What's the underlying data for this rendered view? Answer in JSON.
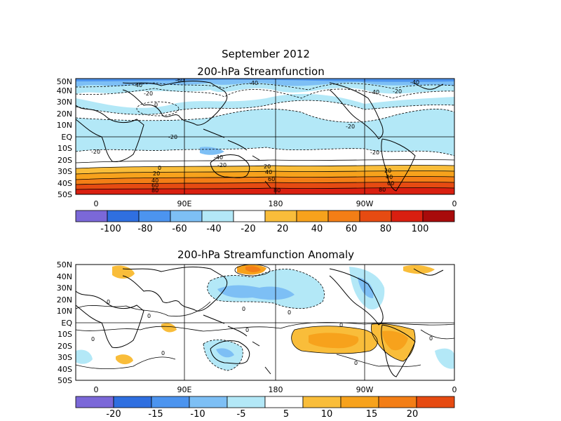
{
  "figure": {
    "title": "September 2012",
    "panel1_title": "200-hPa Streamfunction",
    "panel2_title": "200-hPa Streamfunction Anomaly"
  },
  "lat_labels": [
    "50N",
    "40N",
    "30N",
    "20N",
    "10N",
    "EQ",
    "10S",
    "20S",
    "30S",
    "40S",
    "50S"
  ],
  "lon_labels": [
    "0",
    "90E",
    "180",
    "90W",
    "0"
  ],
  "colorbar1": {
    "colors": [
      "#7b68d8",
      "#2f6fe0",
      "#4c94ef",
      "#7dbff5",
      "#b3e8f7",
      "#ffffff",
      "#f9bd3a",
      "#f7a21c",
      "#f37e16",
      "#e64b12",
      "#d91f10",
      "#a80b0b"
    ],
    "labels": [
      "-100",
      "-80",
      "-60",
      "-40",
      "-20",
      "20",
      "40",
      "60",
      "80",
      "100"
    ]
  },
  "colorbar2": {
    "colors": [
      "#7b68d8",
      "#2f6fe0",
      "#4c94ef",
      "#7dbff5",
      "#b3e8f7",
      "#ffffff",
      "#f9bd3a",
      "#f7a21c",
      "#f37e16",
      "#e64b12"
    ],
    "labels": [
      "-20",
      "-15",
      "-10",
      "-5",
      "5",
      "10",
      "15",
      "20"
    ]
  },
  "contour_labels_panel1": [
    "-40",
    "-20",
    "-60",
    "-40",
    "-40",
    "-20",
    "-20",
    "-40",
    "-20",
    "0",
    "-20",
    "-20",
    "-40",
    "-20",
    "0",
    "20",
    "40",
    "60",
    "80",
    "20",
    "40",
    "60",
    "80",
    "20",
    "40",
    "60",
    "80"
  ],
  "contour_labels_panel2": [
    "0",
    "0",
    "0",
    "0",
    "0",
    "0",
    "0",
    "0",
    "0",
    "0"
  ]
}
